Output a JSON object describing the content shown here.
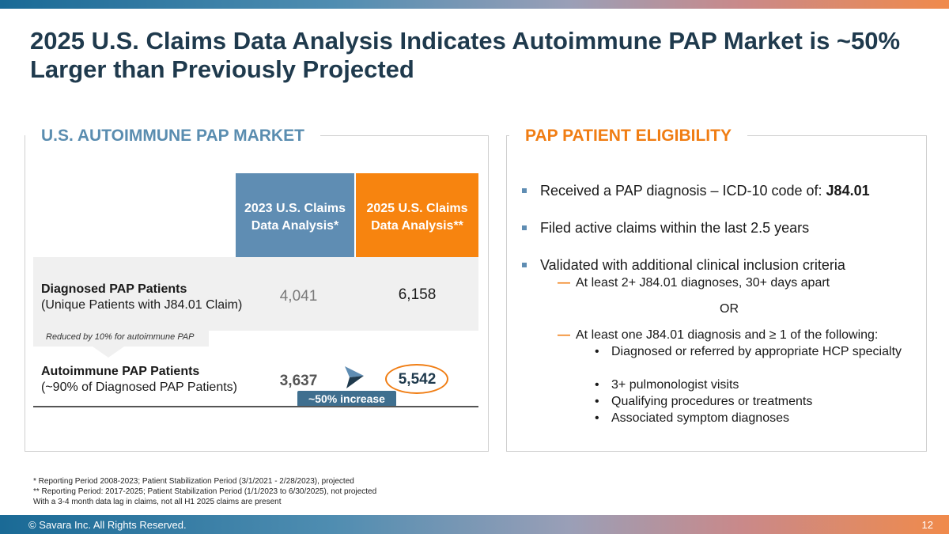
{
  "title": "2025 U.S. Claims Data Analysis Indicates Autoimmune PAP Market is ~50% Larger than Previously Projected",
  "left_panel": {
    "heading": "U.S. AUTOIMMUNE PAP MARKET",
    "col_2023_line1": "2023 U.S. Claims",
    "col_2023_line2": "Data Analysis*",
    "col_2025_line1": "2025 U.S. Claims",
    "col_2025_line2": "Data Analysis**",
    "row1_label": "Diagnosed PAP Patients",
    "row1_sub": "(Unique Patients with J84.01 Claim)",
    "row1_2023": "4,041",
    "row1_2025": "6,158",
    "reduced_note": "Reduced by 10% for autoimmune PAP",
    "row2_label": "Autoimmune PAP Patients",
    "row2_sub": "(~90% of Diagnosed PAP Patients)",
    "row2_2023": "3,637",
    "row2_2025": "5,542",
    "increase_badge": "~50% increase"
  },
  "right_panel": {
    "heading": "PAP PATIENT ELIGIBILITY",
    "bullet1_prefix": "Received a PAP diagnosis – ICD-10 code of: ",
    "bullet1_code": "J84.01",
    "bullet2": "Filed active claims within the last 2.5 years",
    "bullet3": "Validated with additional clinical inclusion criteria",
    "sub1": "At least 2+ J84.01 diagnoses, 30+ days apart",
    "or": "OR",
    "sub2": "At least one J84.01 diagnosis and ≥ 1 of the following:",
    "dots": [
      "Diagnosed or referred by appropriate HCP specialty",
      "3+ pulmonologist visits",
      "Qualifying procedures or treatments",
      "Associated symptom diagnoses"
    ]
  },
  "footnotes": [
    "*  Reporting Period 2008-2023; Patient Stabilization Period (3/1/2021 - 2/28/2023), projected",
    "** Reporting Period: 2017-2025; Patient Stabilization Period (1/1/2023 to 6/30/2025), not projected",
    "With a 3-4 month data lag in claims, not all H1 2025 claims are present"
  ],
  "footer": {
    "copyright": "© Savara Inc. All Rights Reserved.",
    "page": "12"
  }
}
